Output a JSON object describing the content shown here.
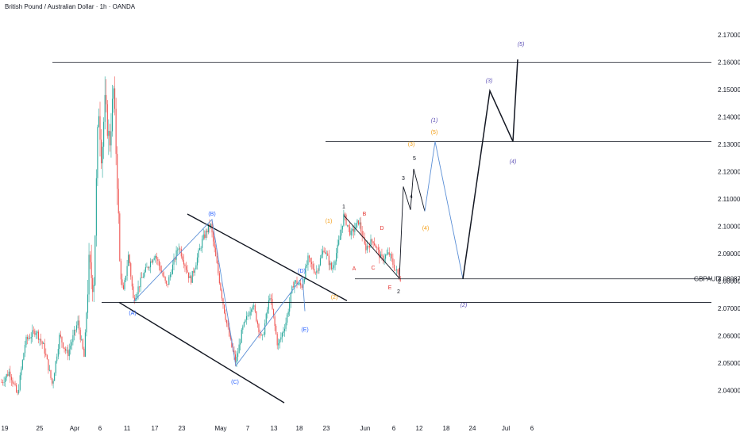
{
  "title": "British Pound / Australian Dollar · 1h · OANDA",
  "chart_data": {
    "type": "candlestick",
    "symbol_label": "GBPAUD",
    "ylim": [
      2.0335,
      2.1775
    ],
    "y_ticks": [
      "2.17000",
      "2.16000",
      "2.15000",
      "2.14000",
      "2.13000",
      "2.12000",
      "2.11000",
      "2.10000",
      "2.09000",
      "2.08000",
      "2.07000",
      "2.06000",
      "2.05000",
      "2.04000"
    ],
    "current_price": "2.08087",
    "x_ticks": [
      "19",
      "25",
      "Apr",
      "6",
      "11",
      "17",
      "23",
      "May",
      "7",
      "13",
      "18",
      "23",
      "Jun",
      "6",
      "12",
      "18",
      "24",
      "Jul",
      "6"
    ],
    "horizontal_levels": [
      2.16,
      2.131,
      2.0808,
      2.0722
    ],
    "channel": {
      "upper": [
        [
          2.1045,
          "May 1"
        ],
        [
          2.0728,
          "May 27"
        ]
      ],
      "lower": [
        [
          2.0722,
          "Apr 10"
        ],
        [
          2.0355,
          "May 19"
        ]
      ]
    },
    "triangle_abcde": [
      {
        "label": "(A)",
        "value": 2.0725
      },
      {
        "label": "(B)",
        "value": 2.1025
      },
      {
        "label": "(C)",
        "value": 2.049
      },
      {
        "label": "(D)",
        "value": 2.0815
      },
      {
        "label": "(E)",
        "value": 2.069
      }
    ],
    "projection_waves": [
      {
        "label": "(1)",
        "value": 2.131
      },
      {
        "label": "(2)",
        "value": 2.0808
      },
      {
        "label": "(3)",
        "value": 2.1495
      },
      {
        "label": "(4)",
        "value": 2.131
      },
      {
        "label": "(5)",
        "value": 2.161
      }
    ],
    "wave_labels": [
      "(1)",
      "(2)",
      "(3)",
      "(4)",
      "(5)",
      "1",
      "2",
      "3",
      "4",
      "5",
      "A",
      "B",
      "C",
      "D",
      "E"
    ],
    "colors": {
      "up": "#26a69a",
      "down": "#ef5350",
      "blue_wave": "#5b8fd6",
      "blue_text": "#2962ff",
      "purple_text": "#5c4fb5",
      "orange_text": "#f39c12",
      "red_text": "#e53935",
      "black": "#131722"
    }
  }
}
